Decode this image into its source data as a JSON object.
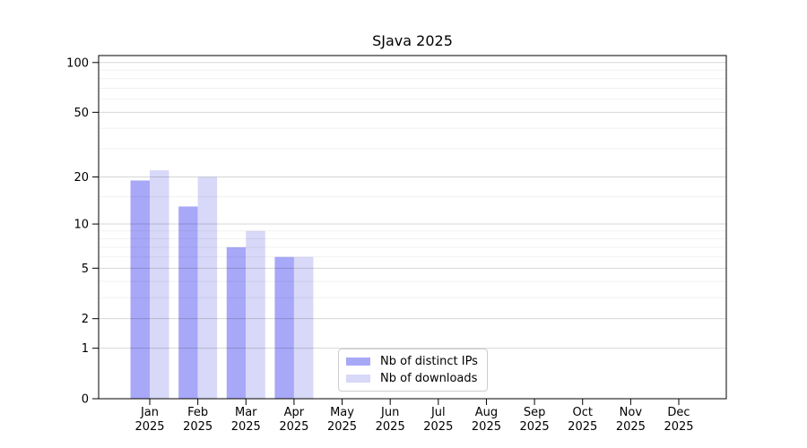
{
  "chart_data": {
    "type": "bar",
    "title": "SJava 2025",
    "categories": [
      "Jan",
      "Feb",
      "Mar",
      "Apr",
      "May",
      "Jun",
      "Jul",
      "Aug",
      "Sep",
      "Oct",
      "Nov",
      "Dec"
    ],
    "x_tick_second_line": "2025",
    "series": [
      {
        "name": "Nb of distinct IPs",
        "color": "#a8a8f8",
        "values": [
          19,
          13,
          7,
          6,
          0,
          0,
          0,
          0,
          0,
          0,
          0,
          0
        ]
      },
      {
        "name": "Nb of downloads",
        "color": "#d8d8f8",
        "values": [
          22,
          20,
          9,
          6,
          0,
          0,
          0,
          0,
          0,
          0,
          0,
          0
        ]
      }
    ],
    "xlabel": "",
    "ylabel": "",
    "y_scale": "log10(1+v)",
    "y_ticks": [
      100,
      50,
      20,
      10,
      5,
      2,
      1,
      0
    ],
    "y_minor_gridlines": [
      3,
      4,
      6,
      7,
      8,
      9,
      15,
      30,
      40,
      60,
      70,
      80,
      90
    ],
    "ylim": [
      0,
      113
    ],
    "grid": "on",
    "legend_position": "inside-bottom-center",
    "colors": {
      "axis": "#000000",
      "background": "#ffffff",
      "grid_major": "rgba(0,0,0,0.16)",
      "grid_minor": "rgba(0,0,0,0.06)",
      "tick_text": "#000000"
    }
  }
}
